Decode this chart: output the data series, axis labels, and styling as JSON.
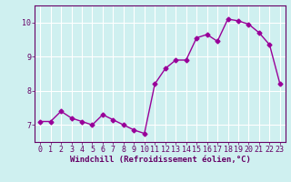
{
  "x": [
    0,
    1,
    2,
    3,
    4,
    5,
    6,
    7,
    8,
    9,
    10,
    11,
    12,
    13,
    14,
    15,
    16,
    17,
    18,
    19,
    20,
    21,
    22,
    23
  ],
  "y": [
    7.1,
    7.1,
    7.4,
    7.2,
    7.1,
    7.0,
    7.3,
    7.15,
    7.0,
    6.85,
    6.75,
    8.2,
    8.65,
    8.9,
    8.9,
    9.55,
    9.65,
    9.45,
    10.1,
    10.05,
    9.95,
    9.7,
    9.35,
    8.2
  ],
  "line_color": "#990099",
  "marker": "D",
  "marker_size": 2.5,
  "line_width": 1.0,
  "bg_color": "#cff0f0",
  "grid_color": "#ffffff",
  "xlabel": "Windchill (Refroidissement éolien,°C)",
  "xlim": [
    -0.5,
    23.5
  ],
  "ylim": [
    6.5,
    10.5
  ],
  "yticks": [
    7,
    8,
    9,
    10
  ],
  "xticks": [
    0,
    1,
    2,
    3,
    4,
    5,
    6,
    7,
    8,
    9,
    10,
    11,
    12,
    13,
    14,
    15,
    16,
    17,
    18,
    19,
    20,
    21,
    22,
    23
  ],
  "tick_color": "#660066",
  "label_color": "#660066",
  "spine_color": "#660066",
  "xlabel_fontsize": 6.5,
  "tick_fontsize": 6.0
}
